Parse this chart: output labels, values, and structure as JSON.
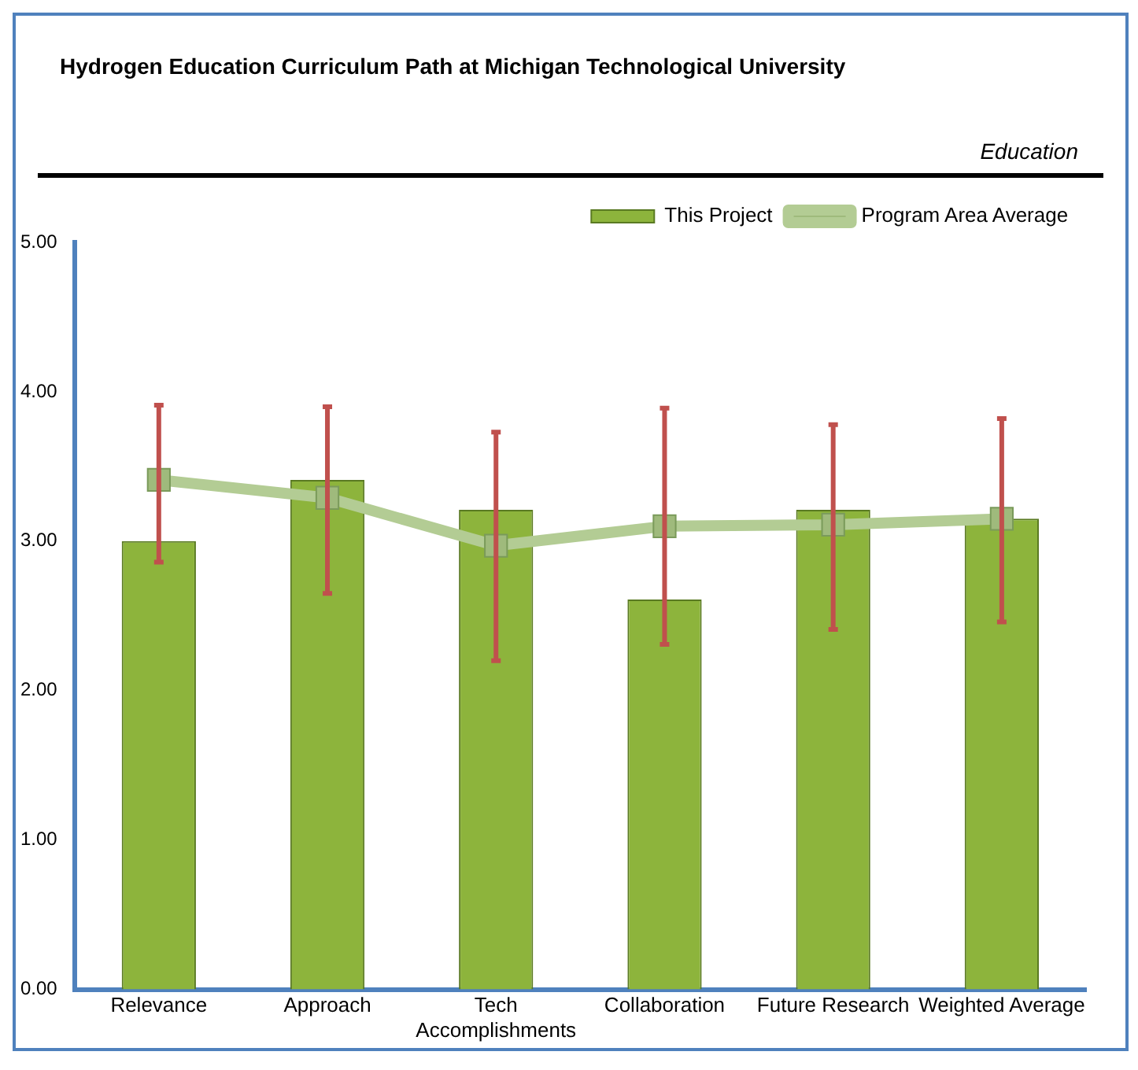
{
  "chart_data": {
    "type": "bar",
    "title": "Hydrogen Education Curriculum Path at Michigan Technological University",
    "subtitle": "Education",
    "categories": [
      "Relevance",
      "Approach",
      "Tech Accomplishments",
      "Collaboration",
      "Future Research",
      "Weighted Average"
    ],
    "series": [
      {
        "name": "This Project",
        "color": "#8db43c",
        "values": [
          3.0,
          3.41,
          3.21,
          2.61,
          3.21,
          3.15
        ],
        "errors": [
          [
            2.86,
            3.91
          ],
          [
            2.65,
            3.9
          ],
          [
            2.2,
            3.73
          ],
          [
            2.31,
            3.89
          ],
          [
            2.41,
            3.78
          ],
          [
            2.46,
            3.82
          ]
        ]
      },
      {
        "name": "Program Area Average",
        "type": "line",
        "color": "#b3cc94",
        "marker": "square",
        "values": [
          3.41,
          3.29,
          2.97,
          3.1,
          3.11,
          3.15
        ]
      }
    ],
    "ylim": [
      0,
      5
    ],
    "yticks": [
      {
        "value": 0,
        "label": "0.00"
      },
      {
        "value": 1,
        "label": "1.00"
      },
      {
        "value": 2,
        "label": "2.00"
      },
      {
        "value": 3,
        "label": "3.00"
      },
      {
        "value": 4,
        "label": "4.00"
      },
      {
        "value": 5,
        "label": "5.00"
      }
    ],
    "grid": false,
    "legend": "top right"
  }
}
